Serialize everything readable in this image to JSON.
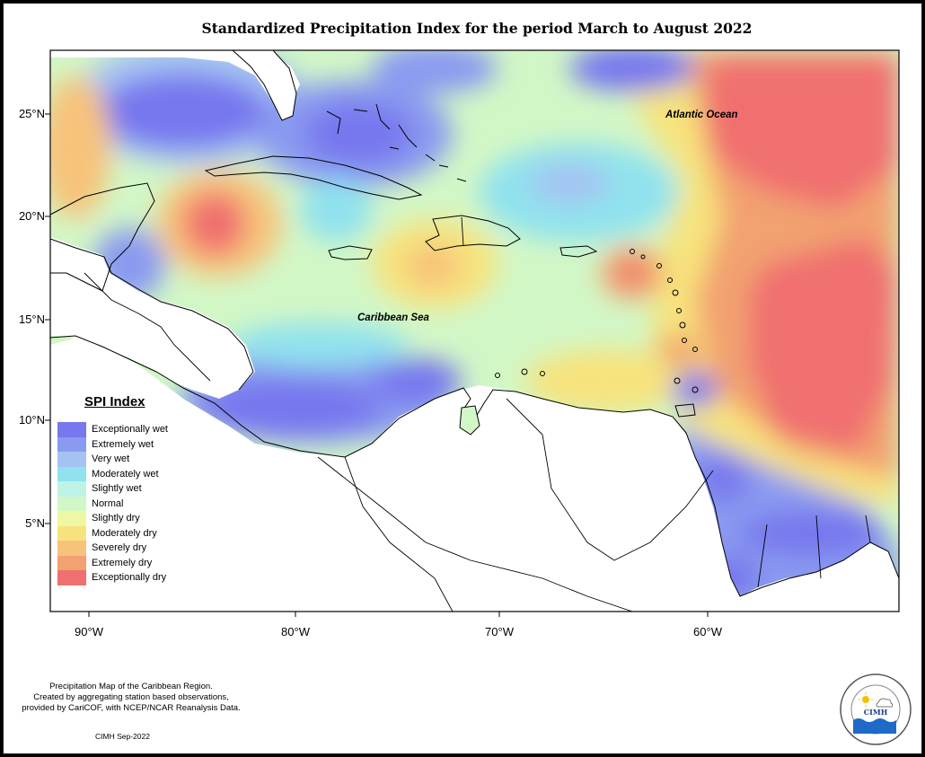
{
  "title": "Standardized Precipitation Index for the period March to August 2022",
  "map": {
    "ocean_labels": [
      "Atlantic Ocean",
      "Caribbean Sea"
    ],
    "lat_ticks": [
      "25°N",
      "20°N",
      "15°N",
      "10°N",
      "5°N"
    ],
    "lon_ticks": [
      "90°W",
      "80°W",
      "70°W",
      "60°W"
    ]
  },
  "legend": {
    "title": "SPI Index",
    "items": [
      {
        "label": "Exceptionally wet",
        "color": "#7777ee"
      },
      {
        "label": "Extremely wet",
        "color": "#8a9af0"
      },
      {
        "label": "Very wet",
        "color": "#a5c3f2"
      },
      {
        "label": "Moderately wet",
        "color": "#90e2ee"
      },
      {
        "label": "Slightly wet",
        "color": "#bff2e6"
      },
      {
        "label": "Normal",
        "color": "#d2f7c6"
      },
      {
        "label": "Slightly dry",
        "color": "#eef7a4"
      },
      {
        "label": "Moderately dry",
        "color": "#f7e37d"
      },
      {
        "label": "Severely dry",
        "color": "#f7c37a"
      },
      {
        "label": "Extremely dry",
        "color": "#f2a170"
      },
      {
        "label": "Exceptionally dry",
        "color": "#f07070"
      }
    ]
  },
  "footnote": {
    "line1": "Precipitation Map of the Caribbean Region.",
    "line2": "Created by aggregating station based observations,",
    "line3": "provided by CariCOF, with NCEP/NCAR Reanalysis Data."
  },
  "stamp": "CIMH Sep-2022",
  "logo": {
    "name": "cimh-logo",
    "text": "CIMH"
  }
}
